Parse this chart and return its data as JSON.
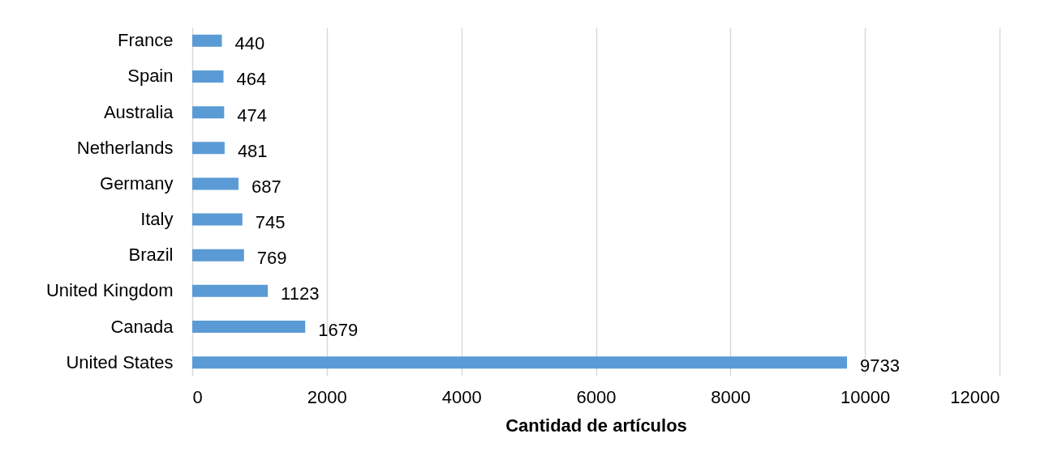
{
  "chart_data": {
    "type": "bar",
    "orientation": "horizontal",
    "xlabel": "Cantidad de artículos",
    "categories": [
      "France",
      "Spain",
      "Australia",
      "Netherlands",
      "Germany",
      "Italy",
      "Brazil",
      "United Kingdom",
      "Canada",
      "United States"
    ],
    "values": [
      440,
      464,
      474,
      481,
      687,
      745,
      769,
      1123,
      1679,
      9733
    ],
    "color": "#5b9bd5",
    "xlim": [
      0,
      12000
    ],
    "xticks": [
      0,
      2000,
      4000,
      6000,
      8000,
      10000,
      12000
    ],
    "grid": "x",
    "data_labels": true
  }
}
